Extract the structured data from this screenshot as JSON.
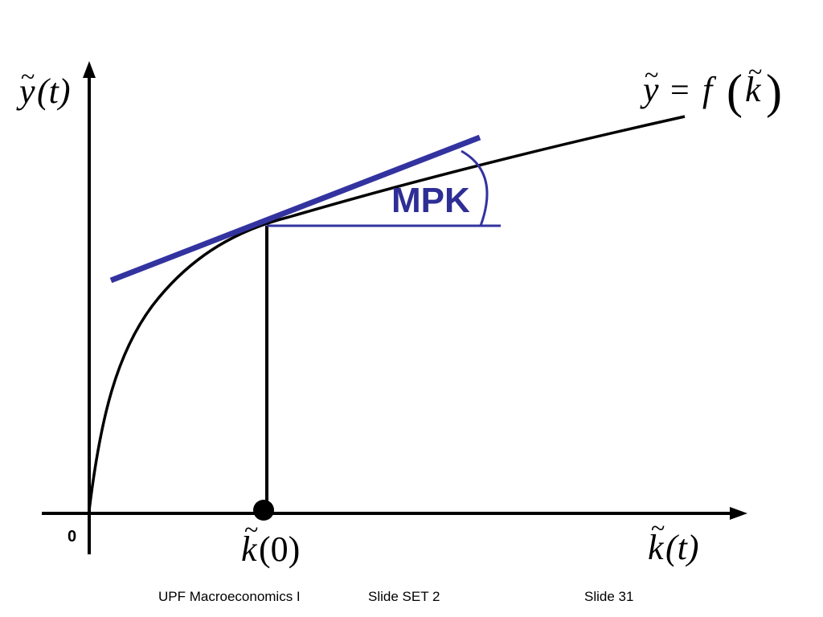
{
  "diagram": {
    "y_axis_label": {
      "base": "y",
      "arg": "(t)"
    },
    "function_label": {
      "lhs": "y",
      "eq": "=",
      "f": "f",
      "arg": "k"
    },
    "x_axis_label": {
      "base": "k",
      "arg": "(t)"
    },
    "k0_label": {
      "base": "k",
      "arg": "(0)"
    },
    "origin_label": "0",
    "mpk_label": "MPK",
    "colors": {
      "curve": "#000000",
      "tangent": "#3333a0",
      "mpk_text": "#2e2e96"
    }
  },
  "footer": {
    "course": "UPF Macroeconomics I",
    "set": "Slide SET 2",
    "slide": "Slide 31"
  }
}
